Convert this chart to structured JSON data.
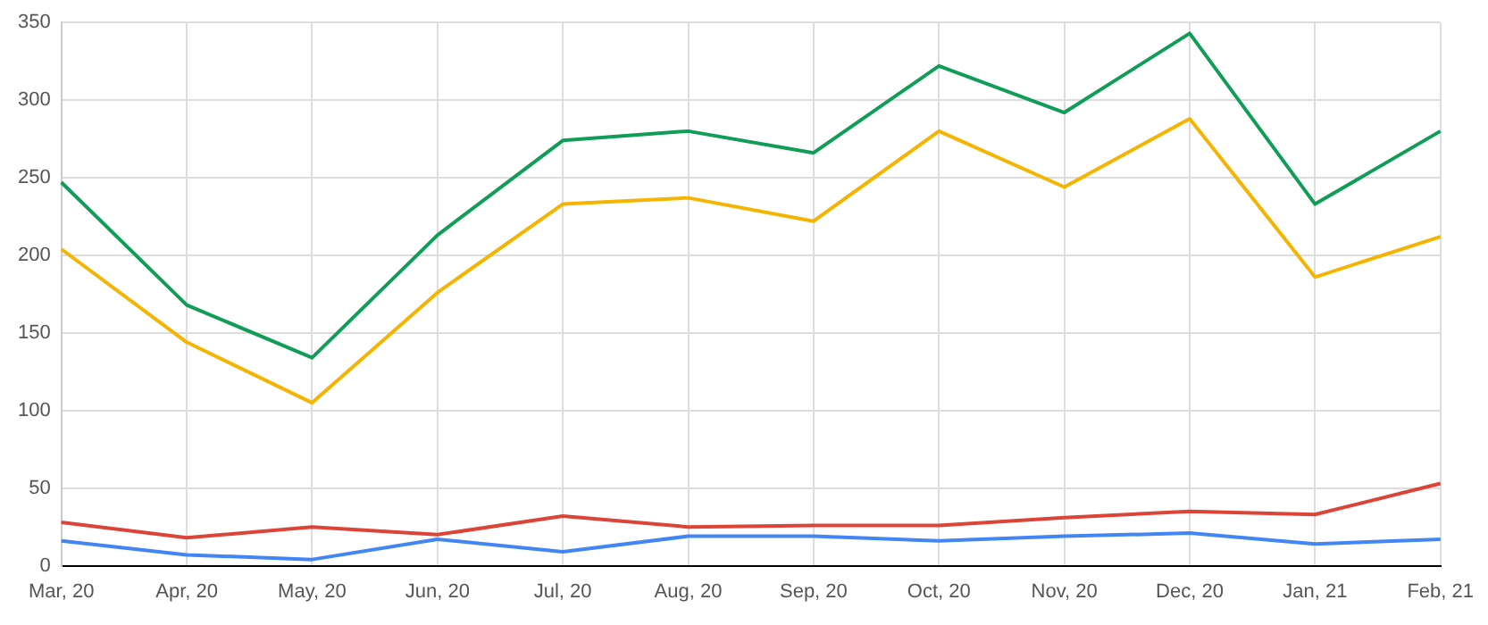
{
  "chart_data": {
    "type": "line",
    "categories": [
      "Mar, 20",
      "Apr, 20",
      "May, 20",
      "Jun, 20",
      "Jul, 20",
      "Aug, 20",
      "Sep, 20",
      "Oct, 20",
      "Nov, 20",
      "Dec, 20",
      "Jan, 21",
      "Feb, 21"
    ],
    "series": [
      {
        "color": "#0f9d58",
        "values": [
          247,
          168,
          134,
          213,
          274,
          280,
          266,
          322,
          292,
          343,
          233,
          280
        ]
      },
      {
        "color": "#f4b400",
        "values": [
          204,
          144,
          105,
          176,
          233,
          237,
          222,
          280,
          244,
          288,
          186,
          212
        ]
      },
      {
        "color": "#db4437",
        "values": [
          28,
          18,
          25,
          20,
          32,
          25,
          26,
          26,
          31,
          35,
          33,
          53
        ]
      },
      {
        "color": "#4285f4",
        "values": [
          16,
          7,
          4,
          17,
          9,
          19,
          19,
          16,
          19,
          21,
          14,
          17
        ]
      }
    ],
    "ylim": [
      0,
      350
    ],
    "yticks": [
      0,
      50,
      100,
      150,
      200,
      250,
      300,
      350
    ],
    "grid": true,
    "legend": false,
    "marker": "none",
    "line_style": "solid"
  }
}
